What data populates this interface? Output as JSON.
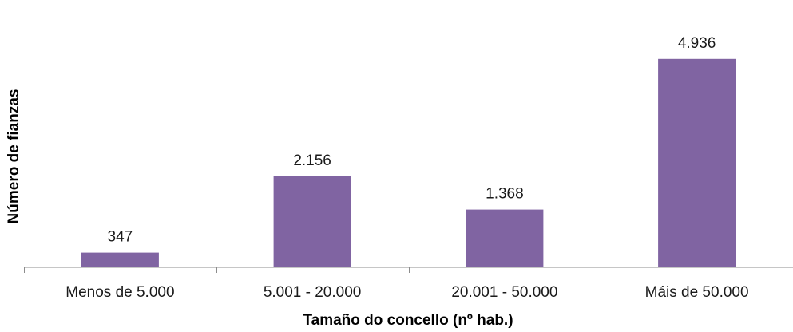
{
  "chart_data": {
    "type": "bar",
    "categories": [
      "Menos de 5.000",
      "5.001 - 20.000",
      "20.001 - 50.000",
      "Máis de 50.000"
    ],
    "values": [
      347,
      2156,
      1368,
      4936
    ],
    "value_labels": [
      "347",
      "2.156",
      "1.368",
      "4.936"
    ],
    "title": "",
    "xlabel": "Tamaño do concello (nº hab.)",
    "ylabel": "Número de fianzas",
    "ylim": [
      0,
      5500
    ],
    "grid": false,
    "legend": "none",
    "colors": {
      "bar": "#8064a2",
      "axis": "#8c8c8c"
    }
  }
}
